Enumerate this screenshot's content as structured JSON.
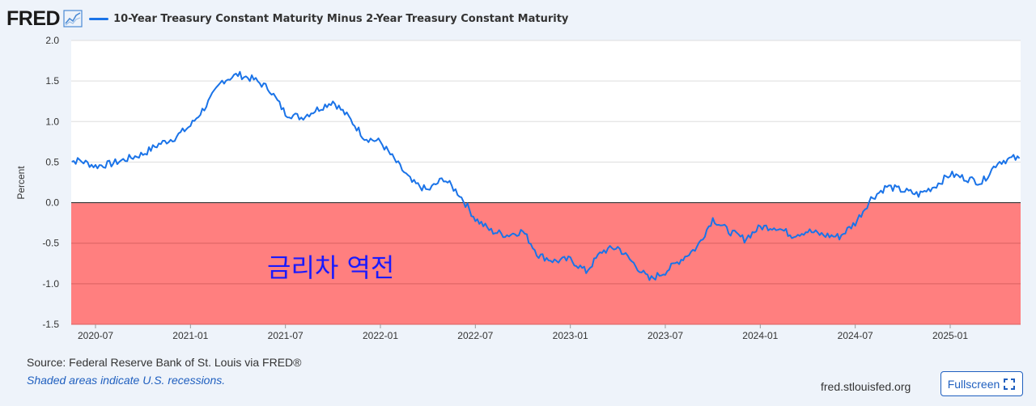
{
  "header": {
    "logo_text": "FRED",
    "logo_icon": "line-chart-icon",
    "series_title": "10-Year Treasury Constant Maturity Minus 2-Year Treasury Constant Maturity"
  },
  "footer": {
    "source": "Source: Federal Reserve Bank of St. Louis via FRED®",
    "recession_note": "Shaded areas indicate U.S. recessions.",
    "site": "fred.stlouisfed.org",
    "fullscreen_label": "Fullscreen",
    "fullscreen_icon": "expand-icon"
  },
  "colors": {
    "line": "#1a73e8",
    "inversion_fill": "#ff7f7f",
    "annotation": "#1a1aff"
  },
  "chart_data": {
    "type": "line",
    "title": "10-Year Treasury Constant Maturity Minus 2-Year Treasury Constant Maturity",
    "ylabel": "Percent",
    "xlabel": "",
    "ylim": [
      -1.5,
      2.0
    ],
    "yticks": [
      "2.0",
      "1.5",
      "1.0",
      "0.5",
      "0.0",
      "-0.5",
      "-1.0",
      "-1.5"
    ],
    "xticks": [
      "2020-07",
      "2021-01",
      "2021-07",
      "2022-01",
      "2022-07",
      "2023-01",
      "2023-07",
      "2024-01",
      "2024-07",
      "2025-01"
    ],
    "grid": true,
    "annotation": {
      "text": "금리차 역전",
      "region": "below 0.0"
    },
    "series": [
      {
        "name": "10-Year Treasury Constant Maturity Minus 2-Year Treasury Constant Maturity",
        "x": [
          "2020-05",
          "2020-06",
          "2020-07",
          "2020-08",
          "2020-09",
          "2020-10",
          "2020-11",
          "2020-12",
          "2021-01",
          "2021-02",
          "2021-03",
          "2021-04",
          "2021-05",
          "2021-06",
          "2021-07",
          "2021-08",
          "2021-09",
          "2021-10",
          "2021-11",
          "2021-12",
          "2022-01",
          "2022-02",
          "2022-03",
          "2022-04",
          "2022-05",
          "2022-06",
          "2022-07",
          "2022-08",
          "2022-09",
          "2022-10",
          "2022-11",
          "2022-12",
          "2023-01",
          "2023-02",
          "2023-03",
          "2023-04",
          "2023-05",
          "2023-06",
          "2023-07",
          "2023-08",
          "2023-09",
          "2023-10",
          "2023-11",
          "2023-12",
          "2024-01",
          "2024-02",
          "2024-03",
          "2024-04",
          "2024-05",
          "2024-06",
          "2024-07",
          "2024-08",
          "2024-09",
          "2024-10",
          "2024-11",
          "2024-12",
          "2025-01",
          "2025-02",
          "2025-03",
          "2025-04",
          "2025-05",
          "2025-06"
        ],
        "values": [
          0.5,
          0.52,
          0.45,
          0.48,
          0.54,
          0.6,
          0.72,
          0.8,
          0.95,
          1.2,
          1.5,
          1.58,
          1.52,
          1.4,
          1.1,
          1.05,
          1.15,
          1.25,
          1.05,
          0.8,
          0.75,
          0.5,
          0.25,
          0.15,
          0.3,
          0.1,
          -0.2,
          -0.35,
          -0.4,
          -0.35,
          -0.65,
          -0.72,
          -0.7,
          -0.85,
          -0.6,
          -0.55,
          -0.75,
          -0.95,
          -0.85,
          -0.7,
          -0.55,
          -0.2,
          -0.35,
          -0.45,
          -0.3,
          -0.3,
          -0.4,
          -0.35,
          -0.4,
          -0.42,
          -0.25,
          0.05,
          0.2,
          0.15,
          0.1,
          0.2,
          0.35,
          0.3,
          0.25,
          0.5,
          0.55,
          0.5
        ]
      }
    ]
  }
}
